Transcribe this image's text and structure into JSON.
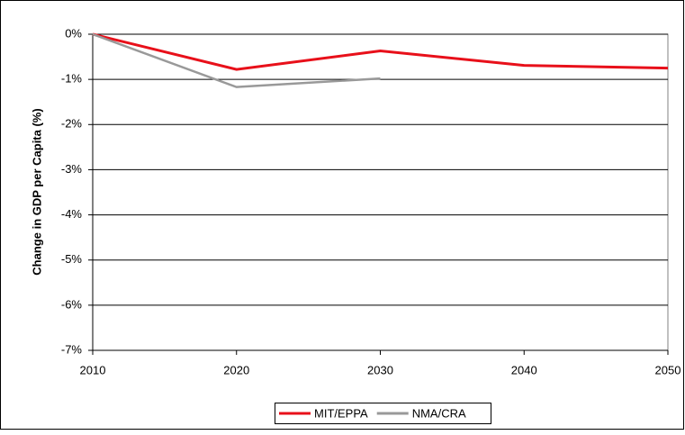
{
  "chart_data": {
    "type": "line",
    "y_label": "Change in GDP per Capita (%)",
    "x": [
      2010,
      2020,
      2030,
      2040,
      2050
    ],
    "xlim": [
      2010,
      2050
    ],
    "xticks": [
      2010,
      2020,
      2030,
      2040,
      2050
    ],
    "ylim": [
      -7,
      0
    ],
    "yticks": [
      {
        "value": 0,
        "label": "0%"
      },
      {
        "value": -1,
        "label": "-1%"
      },
      {
        "value": -2,
        "label": "-2%"
      },
      {
        "value": -3,
        "label": "-3%"
      },
      {
        "value": -4,
        "label": "-4%"
      },
      {
        "value": -5,
        "label": "-5%"
      },
      {
        "value": -6,
        "label": "-6%"
      },
      {
        "value": -7,
        "label": "-7%"
      }
    ],
    "grid": true,
    "legend": "bottom",
    "series": [
      {
        "name": "MIT/EPPA",
        "color": "#e8101a",
        "values": [
          0,
          -0.78,
          -0.37,
          -0.69,
          -0.75
        ]
      },
      {
        "name": "NMA/CRA",
        "color": "#999999",
        "values": [
          0,
          -1.17,
          -0.98,
          null,
          null
        ]
      }
    ]
  }
}
